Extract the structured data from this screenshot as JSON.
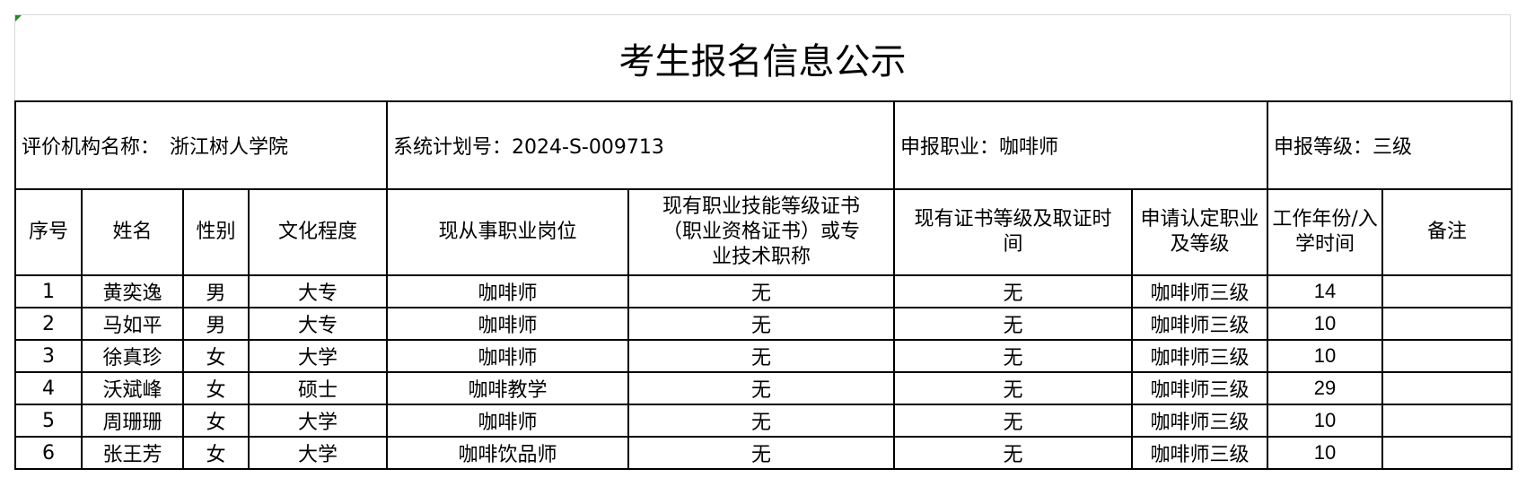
{
  "title": "考生报名信息公示",
  "info": {
    "institution": "评价机构名称：　浙江树人学院",
    "plan_no": "系统计划号：2024-S-009713",
    "occupation": "申报职业：咖啡师",
    "level": "申报等级：三级"
  },
  "columns": [
    "序号",
    "姓名",
    "性别",
    "文化程度",
    "现从事职业岗位",
    "现有职业技能等级证书（职业资格证书）或专业技术职称",
    "现有证书等级及取证时间",
    "申请认定职业及等级",
    "工作年份/入学时间",
    "备注"
  ],
  "rows": [
    {
      "no": "1",
      "name": "黄奕逸",
      "gender": "男",
      "edu": "大专",
      "job": "咖啡师",
      "cert": "无",
      "cert_time": "无",
      "apply": "咖啡师三级",
      "years": "14",
      "note": ""
    },
    {
      "no": "2",
      "name": "马如平",
      "gender": "男",
      "edu": "大专",
      "job": "咖啡师",
      "cert": "无",
      "cert_time": "无",
      "apply": "咖啡师三级",
      "years": "10",
      "note": ""
    },
    {
      "no": "3",
      "name": "徐真珍",
      "gender": "女",
      "edu": "大学",
      "job": "咖啡师",
      "cert": "无",
      "cert_time": "无",
      "apply": "咖啡师三级",
      "years": "10",
      "note": ""
    },
    {
      "no": "4",
      "name": "沃斌峰",
      "gender": "女",
      "edu": "硕士",
      "job": "咖啡教学",
      "cert": "无",
      "cert_time": "无",
      "apply": "咖啡师三级",
      "years": "29",
      "note": ""
    },
    {
      "no": "5",
      "name": "周珊珊",
      "gender": "女",
      "edu": "大学",
      "job": "咖啡师",
      "cert": "无",
      "cert_time": "无",
      "apply": "咖啡师三级",
      "years": "10",
      "note": ""
    },
    {
      "no": "6",
      "name": "张王芳",
      "gender": "女",
      "edu": "大学",
      "job": "咖啡饮品师",
      "cert": "无",
      "cert_time": "无",
      "apply": "咖啡师三级",
      "years": "10",
      "note": ""
    }
  ]
}
